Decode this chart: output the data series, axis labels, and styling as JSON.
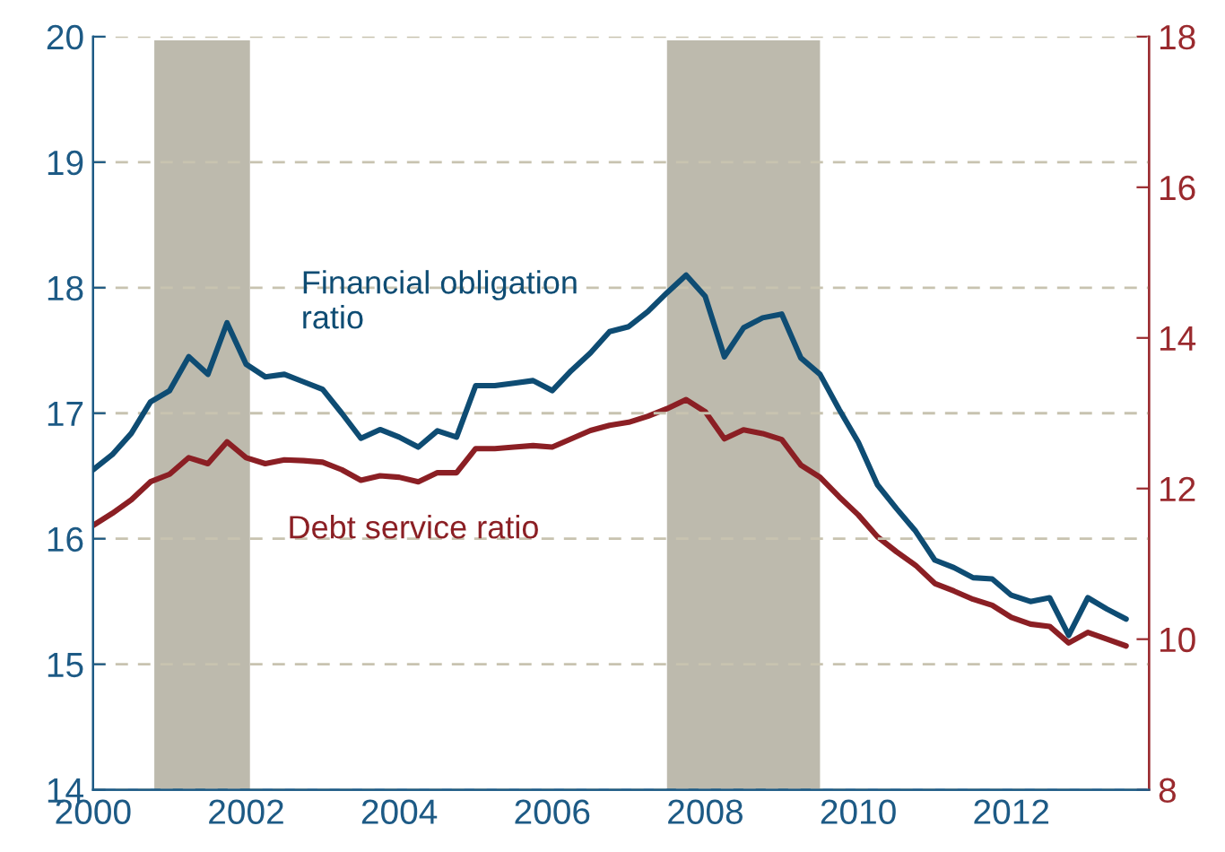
{
  "chart_data": {
    "type": "line",
    "x": [
      2000,
      2000.25,
      2000.5,
      2000.75,
      2001,
      2001.25,
      2001.5,
      2001.75,
      2002,
      2002.25,
      2002.5,
      2002.75,
      2003,
      2003.25,
      2003.5,
      2003.75,
      2004,
      2004.25,
      2004.5,
      2004.75,
      2005,
      2005.25,
      2005.5,
      2005.75,
      2006,
      2006.25,
      2006.5,
      2006.75,
      2007,
      2007.25,
      2007.5,
      2007.75,
      2008,
      2008.25,
      2008.5,
      2008.75,
      2009,
      2009.25,
      2009.5,
      2009.75,
      2010,
      2010.25,
      2010.5,
      2010.75,
      2011,
      2011.25,
      2011.5,
      2011.75,
      2012,
      2012.25,
      2012.5,
      2012.75,
      2013,
      2013.25,
      2013.5
    ],
    "series": [
      {
        "name": "Financial obligation\nratio",
        "color": "#0e4c73",
        "values": [
          16.55,
          16.67,
          16.84,
          17.09,
          17.18,
          17.45,
          17.31,
          17.72,
          17.39,
          17.29,
          17.31,
          17.25,
          17.19,
          17.0,
          16.8,
          16.87,
          16.81,
          16.73,
          16.86,
          16.81,
          17.22,
          17.22,
          17.24,
          17.26,
          17.18,
          17.34,
          17.48,
          17.65,
          17.69,
          17.81,
          17.96,
          18.1,
          17.93,
          17.45,
          17.68,
          17.76,
          17.79,
          17.44,
          17.31,
          17.03,
          16.77,
          16.43,
          16.24,
          16.06,
          15.83,
          15.77,
          15.69,
          15.68,
          15.55,
          15.5,
          15.53,
          15.23,
          15.53,
          15.44,
          15.36
        ]
      },
      {
        "name": "Debt service ratio",
        "color": "#8b1f24",
        "axis": "y2",
        "values": [
          11.51,
          11.67,
          11.85,
          12.09,
          12.19,
          12.41,
          12.33,
          12.62,
          12.41,
          12.33,
          12.38,
          12.37,
          12.35,
          12.25,
          12.11,
          12.17,
          12.15,
          12.09,
          12.21,
          12.21,
          12.53,
          12.53,
          12.55,
          12.57,
          12.55,
          12.66,
          12.77,
          12.84,
          12.88,
          12.96,
          13.06,
          13.18,
          13.02,
          12.66,
          12.78,
          12.73,
          12.65,
          12.31,
          12.15,
          11.89,
          11.65,
          11.36,
          11.16,
          10.98,
          10.74,
          10.64,
          10.53,
          10.45,
          10.29,
          10.2,
          10.17,
          9.95,
          10.09,
          10.0,
          9.91
        ]
      }
    ],
    "xlim": [
      2000,
      2013.8
    ],
    "xticks": [
      2000,
      2002,
      2004,
      2006,
      2008,
      2010,
      2012
    ],
    "ylim": [
      14,
      20
    ],
    "yticks": [
      14,
      15,
      16,
      17,
      18,
      19,
      20
    ],
    "y2lim": [
      8,
      18
    ],
    "y2ticks": [
      8,
      10,
      12,
      14,
      16,
      18
    ],
    "bands": [
      {
        "axis": "x",
        "from": 2000.8,
        "to": 2002.05,
        "color": "#bdbaad"
      },
      {
        "axis": "x",
        "from": 2007.5,
        "to": 2009.5,
        "color": "#bdbaad"
      }
    ],
    "grid": "y",
    "legend": false,
    "line_style": "solid",
    "marker": "none"
  }
}
